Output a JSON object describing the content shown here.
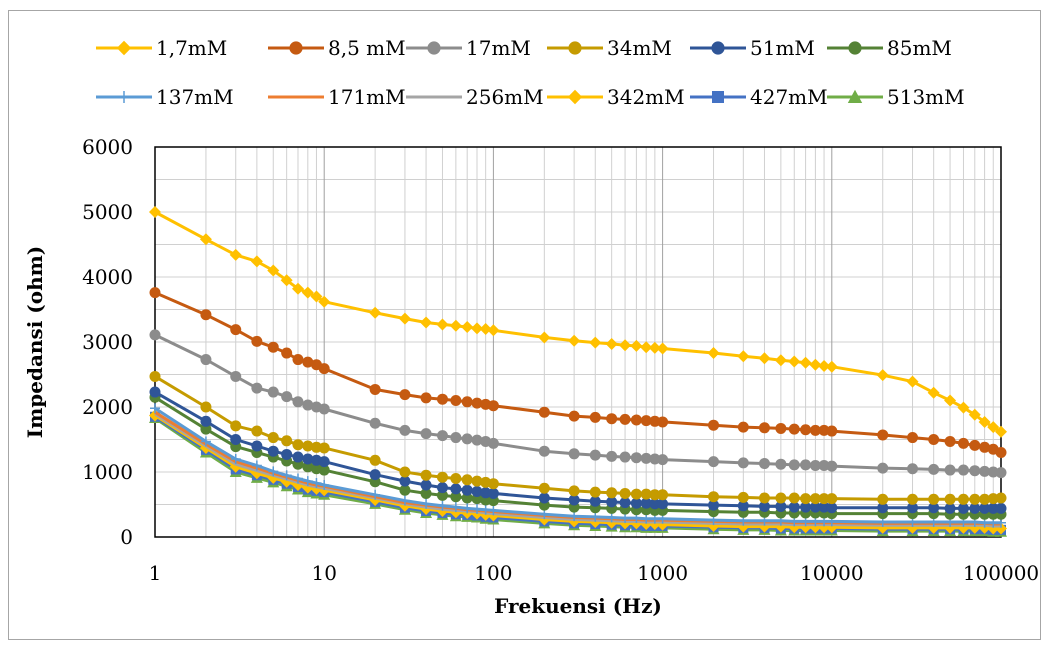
{
  "chart_data": {
    "type": "line",
    "title": "",
    "xlabel": "Frekuensi (Hz)",
    "ylabel": "Impedansi (ohm)",
    "x_scale": "log",
    "xlim": [
      1,
      100000
    ],
    "ylim": [
      0,
      6000
    ],
    "x_ticks": [
      "1",
      "10",
      "100",
      "1000",
      "10000",
      "100000"
    ],
    "y_ticks": [
      "0",
      "1000",
      "2000",
      "3000",
      "4000",
      "5000",
      "6000"
    ],
    "grid": true,
    "legend_position": "top",
    "x": [
      1,
      2,
      3,
      4,
      5,
      6,
      7,
      8,
      9,
      10,
      20,
      30,
      40,
      50,
      60,
      70,
      80,
      90,
      100,
      200,
      300,
      400,
      500,
      600,
      700,
      800,
      900,
      1000,
      2000,
      3000,
      4000,
      5000,
      6000,
      7000,
      8000,
      9000,
      10000,
      20000,
      30000,
      40000,
      50000,
      60000,
      70000,
      80000,
      90000,
      100000
    ],
    "series": [
      {
        "name": "1,7mM",
        "color": "#ffc000",
        "marker": "diamond",
        "values": [
          5000,
          4580,
          4340,
          4240,
          4100,
          3950,
          3820,
          3760,
          3700,
          3620,
          3450,
          3360,
          3300,
          3270,
          3250,
          3230,
          3210,
          3200,
          3180,
          3070,
          3020,
          2990,
          2970,
          2950,
          2940,
          2920,
          2910,
          2900,
          2830,
          2780,
          2750,
          2720,
          2700,
          2680,
          2650,
          2630,
          2620,
          2490,
          2390,
          2220,
          2100,
          1990,
          1880,
          1770,
          1690,
          1620
        ]
      },
      {
        "name": "8,5 mM",
        "color": "#c55a11",
        "marker": "circle",
        "values": [
          3760,
          3420,
          3190,
          3010,
          2920,
          2830,
          2730,
          2690,
          2650,
          2590,
          2270,
          2190,
          2140,
          2120,
          2100,
          2080,
          2060,
          2040,
          2020,
          1920,
          1860,
          1840,
          1820,
          1810,
          1800,
          1790,
          1780,
          1770,
          1720,
          1690,
          1680,
          1670,
          1660,
          1650,
          1640,
          1640,
          1630,
          1570,
          1530,
          1500,
          1470,
          1440,
          1410,
          1380,
          1350,
          1300
        ]
      },
      {
        "name": "17mM",
        "color": "#8c8c8c",
        "marker": "circle",
        "values": [
          3110,
          2730,
          2470,
          2290,
          2230,
          2160,
          2080,
          2030,
          2000,
          1970,
          1750,
          1640,
          1590,
          1560,
          1530,
          1510,
          1490,
          1470,
          1440,
          1320,
          1280,
          1260,
          1240,
          1230,
          1220,
          1210,
          1200,
          1190,
          1160,
          1140,
          1130,
          1120,
          1110,
          1110,
          1100,
          1100,
          1090,
          1060,
          1050,
          1040,
          1030,
          1030,
          1020,
          1010,
          1000,
          990
        ]
      },
      {
        "name": "34mM",
        "color": "#c59b00",
        "marker": "circle",
        "values": [
          2470,
          2000,
          1710,
          1630,
          1530,
          1480,
          1420,
          1400,
          1380,
          1370,
          1180,
          1000,
          950,
          920,
          900,
          880,
          860,
          840,
          820,
          750,
          710,
          690,
          680,
          670,
          660,
          660,
          650,
          650,
          620,
          610,
          600,
          600,
          600,
          590,
          590,
          590,
          590,
          580,
          580,
          580,
          580,
          580,
          580,
          580,
          590,
          600
        ]
      },
      {
        "name": "51mM",
        "color": "#2f5597",
        "marker": "circle",
        "values": [
          2230,
          1780,
          1500,
          1400,
          1320,
          1270,
          1230,
          1200,
          1180,
          1160,
          960,
          860,
          800,
          760,
          740,
          720,
          700,
          680,
          670,
          600,
          570,
          550,
          540,
          530,
          520,
          520,
          510,
          510,
          490,
          480,
          470,
          470,
          460,
          460,
          460,
          460,
          450,
          450,
          450,
          450,
          440,
          440,
          440,
          440,
          440,
          440
        ]
      },
      {
        "name": "85mM",
        "color": "#548235",
        "marker": "circle",
        "values": [
          2150,
          1660,
          1390,
          1300,
          1230,
          1170,
          1120,
          1080,
          1050,
          1030,
          850,
          720,
          670,
          640,
          620,
          600,
          590,
          570,
          560,
          490,
          460,
          450,
          440,
          430,
          420,
          420,
          410,
          410,
          390,
          380,
          380,
          370,
          370,
          370,
          370,
          370,
          360,
          360,
          360,
          360,
          350,
          350,
          350,
          350,
          350,
          350
        ]
      },
      {
        "name": "137mM",
        "color": "#5b9bd5",
        "marker": "plus",
        "values": [
          1980,
          1470,
          1200,
          1100,
          1010,
          950,
          900,
          860,
          830,
          800,
          650,
          560,
          510,
          480,
          460,
          440,
          430,
          420,
          410,
          350,
          320,
          310,
          300,
          290,
          290,
          280,
          280,
          280,
          260,
          250,
          250,
          250,
          240,
          240,
          240,
          240,
          240,
          230,
          230,
          230,
          230,
          230,
          230,
          220,
          220,
          220
        ]
      },
      {
        "name": "171mM",
        "color": "#ed7d31",
        "marker": "none",
        "values": [
          1920,
          1430,
          1160,
          1060,
          980,
          920,
          870,
          830,
          800,
          780,
          620,
          530,
          490,
          460,
          440,
          420,
          410,
          400,
          390,
          330,
          300,
          290,
          280,
          270,
          270,
          260,
          260,
          260,
          240,
          230,
          230,
          230,
          220,
          220,
          220,
          220,
          220,
          210,
          210,
          210,
          210,
          210,
          210,
          210,
          200,
          200
        ]
      },
      {
        "name": "256mM",
        "color": "#a5a5a5",
        "marker": "none",
        "values": [
          1890,
          1400,
          1120,
          1020,
          950,
          890,
          840,
          800,
          770,
          750,
          600,
          510,
          460,
          430,
          410,
          400,
          390,
          370,
          360,
          300,
          270,
          260,
          250,
          240,
          240,
          230,
          230,
          230,
          210,
          200,
          200,
          200,
          190,
          190,
          190,
          190,
          190,
          180,
          180,
          180,
          180,
          180,
          180,
          180,
          170,
          170
        ]
      },
      {
        "name": "342mM",
        "color": "#ffc000",
        "marker": "diamond",
        "values": [
          1870,
          1370,
          1080,
          980,
          910,
          850,
          800,
          760,
          740,
          720,
          570,
          480,
          430,
          400,
          380,
          370,
          360,
          340,
          330,
          270,
          240,
          230,
          220,
          210,
          210,
          200,
          200,
          190,
          170,
          160,
          160,
          160,
          150,
          150,
          150,
          150,
          150,
          140,
          140,
          140,
          140,
          140,
          140,
          140,
          130,
          130
        ]
      },
      {
        "name": "427mM",
        "color": "#4472c4",
        "marker": "square",
        "values": [
          1850,
          1340,
          1040,
          950,
          880,
          820,
          770,
          730,
          710,
          690,
          540,
          450,
          400,
          370,
          350,
          340,
          330,
          310,
          300,
          240,
          210,
          200,
          190,
          180,
          180,
          170,
          170,
          170,
          150,
          140,
          140,
          130,
          130,
          130,
          130,
          130,
          130,
          120,
          120,
          120,
          120,
          120,
          120,
          120,
          110,
          110
        ]
      },
      {
        "name": "513mM",
        "color": "#70ad47",
        "marker": "triangle",
        "values": [
          1830,
          1300,
          1000,
          910,
          840,
          780,
          730,
          690,
          670,
          650,
          510,
          420,
          370,
          340,
          320,
          310,
          300,
          280,
          270,
          210,
          180,
          170,
          160,
          150,
          150,
          140,
          140,
          140,
          120,
          110,
          110,
          100,
          100,
          100,
          100,
          100,
          100,
          90,
          90,
          90,
          90,
          90,
          90,
          90,
          80,
          80
        ]
      }
    ]
  }
}
